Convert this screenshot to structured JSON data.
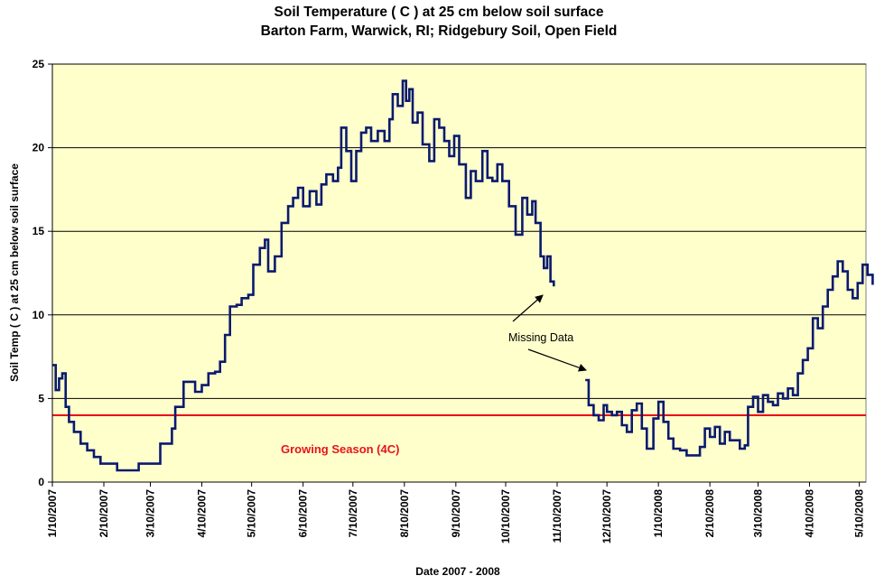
{
  "chart_data": {
    "type": "line",
    "title_line1": "Soil Temperature ( C ) at 25 cm below soil surface",
    "title_line2": "Barton Farm, Warwick, RI; Ridgebury Soil, Open Field",
    "xlabel": "Date 2007 - 2008",
    "ylabel": "Soil Temp ( C ) at 25 cm below soil surface",
    "ylim": [
      0,
      25
    ],
    "yticks": [
      "0",
      "5",
      "10",
      "15",
      "20",
      "25"
    ],
    "xticks": [
      "1/10/2007",
      "2/10/2007",
      "3/10/2007",
      "4/10/2007",
      "5/10/2007",
      "6/10/2007",
      "7/10/2007",
      "8/10/2007",
      "9/10/2007",
      "10/10/2007",
      "11/10/2007",
      "12/10/2007",
      "1/10/2008",
      "2/10/2008",
      "3/10/2008",
      "4/10/2008",
      "5/10/2008"
    ],
    "grid": "horizontal",
    "background": "#ffffcc",
    "series": [
      {
        "color": "#0a1a6e",
        "segments": [
          [
            [
              "2007-01-10",
              7.0
            ],
            [
              "2007-01-12",
              5.5
            ],
            [
              "2007-01-14",
              6.2
            ],
            [
              "2007-01-16",
              6.5
            ],
            [
              "2007-01-18",
              4.5
            ],
            [
              "2007-01-20",
              3.6
            ],
            [
              "2007-01-23",
              3.0
            ],
            [
              "2007-01-27",
              2.3
            ],
            [
              "2007-01-31",
              1.9
            ],
            [
              "2007-02-04",
              1.5
            ],
            [
              "2007-02-08",
              1.1
            ],
            [
              "2007-02-14",
              1.1
            ],
            [
              "2007-02-18",
              0.7
            ],
            [
              "2007-02-28",
              0.7
            ],
            [
              "2007-03-03",
              1.1
            ],
            [
              "2007-03-14",
              1.1
            ],
            [
              "2007-03-16",
              2.3
            ],
            [
              "2007-03-20",
              2.3
            ],
            [
              "2007-03-23",
              3.2
            ],
            [
              "2007-03-25",
              4.5
            ],
            [
              "2007-03-30",
              6.0
            ],
            [
              "2007-04-03",
              6.0
            ],
            [
              "2007-04-06",
              5.4
            ],
            [
              "2007-04-10",
              5.8
            ],
            [
              "2007-04-14",
              6.5
            ],
            [
              "2007-04-18",
              6.6
            ],
            [
              "2007-04-21",
              7.2
            ],
            [
              "2007-04-24",
              8.8
            ],
            [
              "2007-04-27",
              10.5
            ],
            [
              "2007-05-01",
              10.6
            ],
            [
              "2007-05-04",
              11.0
            ],
            [
              "2007-05-08",
              11.2
            ],
            [
              "2007-05-11",
              13.0
            ],
            [
              "2007-05-15",
              14.0
            ],
            [
              "2007-05-18",
              14.5
            ],
            [
              "2007-05-20",
              12.6
            ],
            [
              "2007-05-24",
              13.5
            ],
            [
              "2007-05-28",
              15.5
            ],
            [
              "2007-06-01",
              16.5
            ],
            [
              "2007-06-04",
              17.0
            ],
            [
              "2007-06-07",
              17.6
            ],
            [
              "2007-06-10",
              16.5
            ],
            [
              "2007-06-14",
              17.4
            ],
            [
              "2007-06-18",
              16.6
            ],
            [
              "2007-06-21",
              17.8
            ],
            [
              "2007-06-24",
              18.4
            ],
            [
              "2007-06-28",
              18.0
            ],
            [
              "2007-07-01",
              18.8
            ],
            [
              "2007-07-03",
              21.2
            ],
            [
              "2007-07-06",
              19.8
            ],
            [
              "2007-07-09",
              18.0
            ],
            [
              "2007-07-12",
              19.8
            ],
            [
              "2007-07-15",
              20.9
            ],
            [
              "2007-07-18",
              21.2
            ],
            [
              "2007-07-21",
              20.4
            ],
            [
              "2007-07-25",
              21.0
            ],
            [
              "2007-07-29",
              20.4
            ],
            [
              "2007-08-01",
              21.7
            ],
            [
              "2007-08-03",
              23.2
            ],
            [
              "2007-08-06",
              22.5
            ],
            [
              "2007-08-09",
              24.0
            ],
            [
              "2007-08-11",
              22.8
            ],
            [
              "2007-08-13",
              23.5
            ],
            [
              "2007-08-15",
              21.5
            ],
            [
              "2007-08-18",
              22.1
            ],
            [
              "2007-08-21",
              20.2
            ],
            [
              "2007-08-25",
              19.2
            ],
            [
              "2007-08-28",
              21.7
            ],
            [
              "2007-08-31",
              21.2
            ],
            [
              "2007-09-03",
              20.4
            ],
            [
              "2007-09-06",
              19.5
            ],
            [
              "2007-09-09",
              20.7
            ],
            [
              "2007-09-12",
              19.0
            ],
            [
              "2007-09-16",
              17.0
            ],
            [
              "2007-09-19",
              18.6
            ],
            [
              "2007-09-22",
              18.0
            ],
            [
              "2007-09-26",
              19.8
            ],
            [
              "2007-09-29",
              18.2
            ],
            [
              "2007-10-02",
              18.0
            ],
            [
              "2007-10-05",
              19.0
            ],
            [
              "2007-10-08",
              18.0
            ],
            [
              "2007-10-12",
              16.5
            ],
            [
              "2007-10-16",
              14.8
            ],
            [
              "2007-10-20",
              17.0
            ],
            [
              "2007-10-23",
              16.0
            ],
            [
              "2007-10-26",
              16.8
            ],
            [
              "2007-10-28",
              15.5
            ],
            [
              "2007-10-31",
              13.5
            ],
            [
              "2007-11-02",
              12.8
            ],
            [
              "2007-11-04",
              13.5
            ],
            [
              "2007-11-06",
              12.0
            ],
            [
              "2007-11-08",
              11.7
            ]
          ],
          [
            [
              "2007-11-27",
              6.1
            ],
            [
              "2007-11-29",
              4.6
            ],
            [
              "2007-12-02",
              4.0
            ],
            [
              "2007-12-05",
              3.7
            ],
            [
              "2007-12-08",
              4.6
            ],
            [
              "2007-12-10",
              4.2
            ],
            [
              "2007-12-13",
              4.0
            ],
            [
              "2007-12-16",
              4.2
            ],
            [
              "2007-12-19",
              3.4
            ],
            [
              "2007-12-22",
              3.0
            ],
            [
              "2007-12-25",
              4.3
            ],
            [
              "2007-12-28",
              4.7
            ],
            [
              "2007-12-31",
              3.2
            ],
            [
              "2008-01-03",
              2.0
            ],
            [
              "2008-01-07",
              3.8
            ],
            [
              "2008-01-10",
              4.8
            ],
            [
              "2008-01-13",
              3.6
            ],
            [
              "2008-01-16",
              2.6
            ],
            [
              "2008-01-19",
              2.0
            ],
            [
              "2008-01-23",
              1.9
            ],
            [
              "2008-01-27",
              1.6
            ],
            [
              "2008-01-31",
              1.6
            ],
            [
              "2008-02-04",
              2.1
            ],
            [
              "2008-02-07",
              3.2
            ],
            [
              "2008-02-10",
              2.7
            ],
            [
              "2008-02-13",
              3.3
            ],
            [
              "2008-02-16",
              2.3
            ],
            [
              "2008-02-19",
              3.0
            ],
            [
              "2008-02-22",
              2.5
            ],
            [
              "2008-02-25",
              2.5
            ],
            [
              "2008-02-28",
              2.0
            ],
            [
              "2008-03-02",
              2.2
            ],
            [
              "2008-03-04",
              4.5
            ],
            [
              "2008-03-07",
              5.1
            ],
            [
              "2008-03-10",
              4.2
            ],
            [
              "2008-03-13",
              5.2
            ],
            [
              "2008-03-16",
              4.8
            ],
            [
              "2008-03-19",
              4.6
            ],
            [
              "2008-03-22",
              5.3
            ],
            [
              "2008-03-25",
              5.0
            ],
            [
              "2008-03-28",
              5.6
            ],
            [
              "2008-03-31",
              5.2
            ],
            [
              "2008-04-03",
              6.5
            ],
            [
              "2008-04-06",
              7.3
            ],
            [
              "2008-04-09",
              8.0
            ],
            [
              "2008-04-12",
              9.8
            ],
            [
              "2008-04-15",
              9.2
            ],
            [
              "2008-04-18",
              10.5
            ],
            [
              "2008-04-21",
              11.5
            ],
            [
              "2008-04-24",
              12.3
            ],
            [
              "2008-04-27",
              13.2
            ],
            [
              "2008-04-30",
              12.6
            ],
            [
              "2008-05-03",
              11.5
            ],
            [
              "2008-05-06",
              11.0
            ],
            [
              "2008-05-09",
              11.9
            ],
            [
              "2008-05-12",
              13.0
            ],
            [
              "2008-05-15",
              12.4
            ],
            [
              "2008-05-18",
              11.8
            ]
          ]
        ]
      }
    ],
    "reference_line": {
      "y": 4,
      "label": "Growing Season (4C)",
      "color": "#e8141a"
    },
    "annotation": {
      "text": "Missing Data"
    }
  }
}
